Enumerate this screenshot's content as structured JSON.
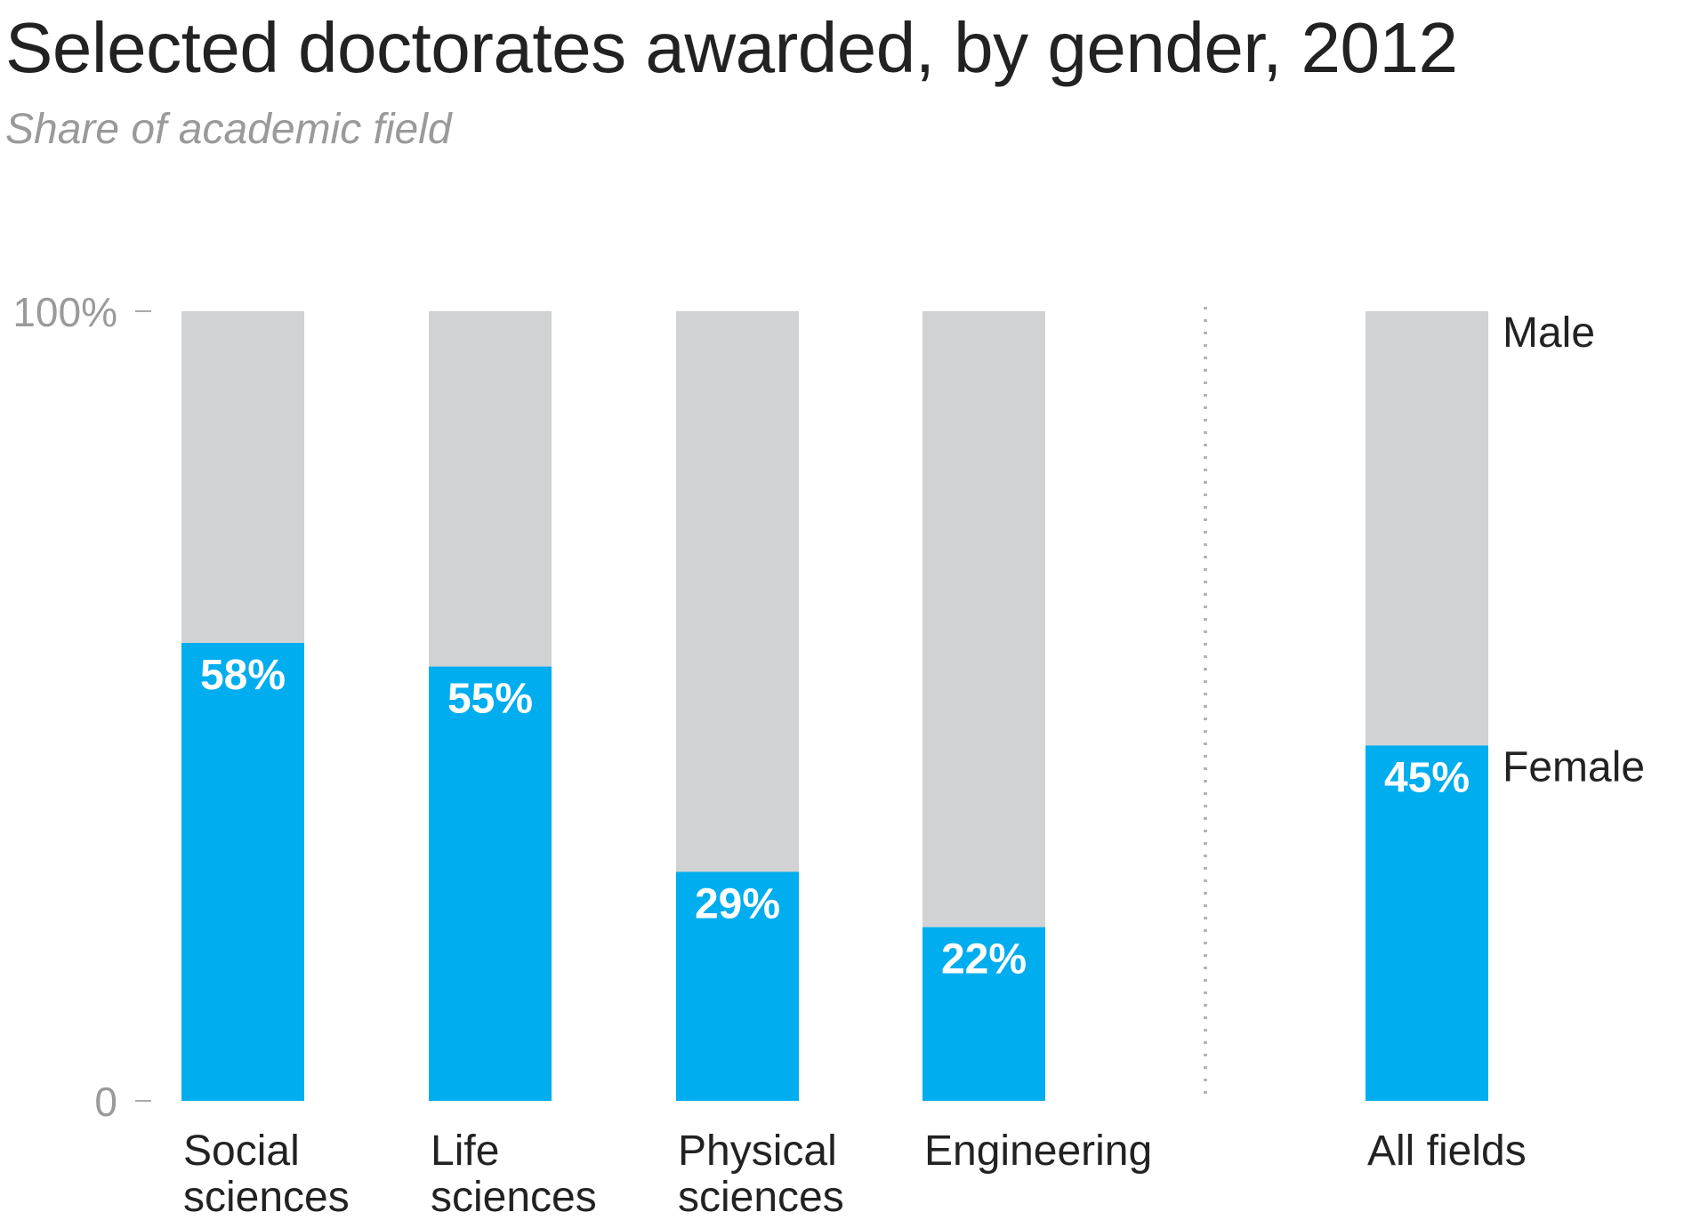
{
  "chart_data": {
    "type": "bar",
    "stacked": true,
    "title": "Selected doctorates awarded, by gender, 2012",
    "subtitle": "Share of academic field",
    "categories": [
      [
        "Social",
        "sciences"
      ],
      [
        "Life",
        "sciences"
      ],
      [
        "Physical",
        "sciences"
      ],
      [
        "Engineering"
      ],
      [
        "All fields"
      ]
    ],
    "series": [
      {
        "name": "Female",
        "values": [
          58,
          55,
          29,
          22,
          45
        ],
        "color": "#00adee"
      },
      {
        "name": "Male",
        "values": [
          42,
          45,
          71,
          78,
          55
        ],
        "color": "#d1d2d4"
      }
    ],
    "data_labels": [
      "58%",
      "55%",
      "29%",
      "22%",
      "45%"
    ],
    "y_ticks": [
      {
        "value": 100,
        "label": "100%"
      },
      {
        "value": 0,
        "label": "0"
      }
    ],
    "ylim": [
      0,
      100
    ],
    "grid": false,
    "separator_before_category": 4,
    "legend_placement": "right of last bar"
  }
}
